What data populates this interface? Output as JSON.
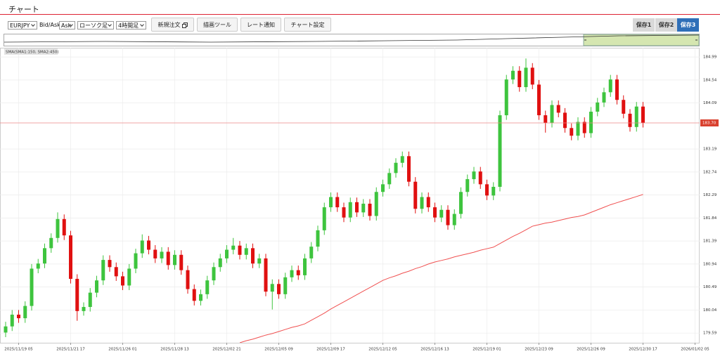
{
  "header": {
    "title": "チャート"
  },
  "toolbar": {
    "symbol": "EURJPY",
    "price_label": "Bid/Ask",
    "price_type": "Ask",
    "chart_type": "ローソク足",
    "timeframe": "4時間足",
    "buttons": [
      "新規注文",
      "描画ツール",
      "レート通知",
      "チャート設定"
    ],
    "saves": [
      "保存1",
      "保存2",
      "保存3"
    ]
  },
  "chart_data": {
    "type": "candlestick",
    "up_color": "#3ec43e",
    "down_color": "#e01010",
    "grid": true,
    "ylim": [
      179.4,
      185.17
    ],
    "yticks": [
      184.99,
      184.54,
      184.09,
      183.19,
      182.74,
      182.29,
      181.84,
      181.39,
      180.94,
      180.49,
      180.04,
      179.59
    ],
    "current_price": {
      "value": 183.7,
      "label": "183.70"
    },
    "categories": [
      null,
      null,
      "2025/11/19 05",
      null,
      null,
      null,
      null,
      null,
      null,
      null,
      "2025/11/21 17",
      null,
      null,
      null,
      null,
      null,
      null,
      null,
      "2025/11/26 01",
      null,
      null,
      null,
      null,
      null,
      null,
      null,
      "2025/11/28 13",
      null,
      null,
      null,
      null,
      null,
      null,
      null,
      "2025/12/02 21",
      null,
      null,
      null,
      null,
      null,
      null,
      null,
      "2025/12/05 09",
      null,
      null,
      null,
      null,
      null,
      null,
      null,
      "2025/12/09 17",
      null,
      null,
      null,
      null,
      null,
      null,
      null,
      "2025/12/12 05",
      null,
      null,
      null,
      null,
      null,
      null,
      null,
      "2025/12/16 13",
      null,
      null,
      null,
      null,
      null,
      null,
      null,
      "2025/12/19 01",
      null,
      null,
      null,
      null,
      null,
      null,
      null,
      "2025/12/23 09",
      null,
      null,
      null,
      null,
      null,
      null,
      null,
      "2025/12/26 09",
      null,
      null,
      null,
      null,
      null,
      null,
      null,
      "2025/12/30 17",
      null,
      null,
      null,
      null,
      null,
      null,
      null,
      "2026/01/02 05"
    ],
    "open": [
      179.6,
      179.72,
      179.95,
      179.88,
      180.12,
      180.85,
      180.95,
      181.25,
      181.45,
      181.82,
      181.5,
      180.65,
      180.02,
      180.1,
      180.38,
      180.62,
      181.02,
      180.88,
      180.7,
      180.52,
      180.85,
      181.15,
      181.4,
      181.22,
      181.05,
      181.18,
      180.92,
      181.12,
      180.82,
      180.45,
      180.22,
      180.35,
      180.62,
      180.88,
      181.05,
      181.22,
      181.3,
      181.12,
      181.25,
      180.95,
      181.05,
      180.4,
      180.55,
      180.35,
      180.68,
      180.82,
      180.72,
      181.05,
      181.28,
      181.6,
      182.05,
      182.25,
      182.05,
      181.85,
      182.15,
      181.95,
      182.12,
      181.88,
      182.35,
      182.5,
      182.72,
      182.92,
      183.05,
      182.55,
      182.02,
      182.25,
      182.05,
      181.85,
      182.0,
      181.7,
      181.92,
      182.35,
      182.6,
      182.75,
      182.5,
      182.28,
      182.45,
      183.85,
      184.55,
      184.72,
      184.4,
      184.78,
      184.45,
      183.85,
      183.7,
      184.05,
      183.9,
      183.6,
      183.45,
      183.72,
      183.5,
      183.92,
      184.1,
      184.3,
      184.55,
      184.15,
      183.88,
      183.62,
      184.02,
      null,
      null,
      null,
      null,
      null,
      null,
      null,
      null
    ],
    "high": [
      179.81,
      180.04,
      180.04,
      180.21,
      180.94,
      181.04,
      181.34,
      181.54,
      181.95,
      181.91,
      181.59,
      180.74,
      180.19,
      180.47,
      180.71,
      181.11,
      181.11,
      180.97,
      180.79,
      180.94,
      181.24,
      181.52,
      181.49,
      181.31,
      181.27,
      181.27,
      181.21,
      181.21,
      180.91,
      180.54,
      180.44,
      180.71,
      180.97,
      181.14,
      181.31,
      181.45,
      181.39,
      181.34,
      181.34,
      181.14,
      181.14,
      180.64,
      180.64,
      180.77,
      180.91,
      180.91,
      181.14,
      181.37,
      181.69,
      182.14,
      182.34,
      182.34,
      182.14,
      182.24,
      182.24,
      182.21,
      182.21,
      182.44,
      182.59,
      182.81,
      183.01,
      183.14,
      183.14,
      182.64,
      182.34,
      182.34,
      182.14,
      182.09,
      182.09,
      182.01,
      182.44,
      182.69,
      182.84,
      182.84,
      182.59,
      182.54,
      183.94,
      184.64,
      184.81,
      184.81,
      184.96,
      184.87,
      184.54,
      183.94,
      184.14,
      184.14,
      183.99,
      183.69,
      183.81,
      183.81,
      184.01,
      184.19,
      184.39,
      184.64,
      184.64,
      184.24,
      183.97,
      184.11,
      184.11,
      null,
      null,
      null,
      null,
      null,
      null,
      null,
      null
    ],
    "low": [
      179.51,
      179.63,
      179.79,
      179.79,
      180.03,
      180.76,
      180.86,
      181.16,
      181.36,
      181.41,
      180.56,
      179.83,
      179.93,
      180.01,
      180.29,
      180.53,
      180.79,
      180.61,
      180.43,
      180.43,
      180.76,
      181.06,
      181.13,
      180.96,
      180.96,
      180.83,
      180.83,
      180.73,
      180.36,
      180.13,
      180.13,
      180.26,
      180.53,
      180.79,
      180.96,
      181.13,
      181.03,
      181.03,
      180.86,
      180.86,
      180.31,
      180.05,
      180.26,
      180.26,
      180.59,
      180.63,
      180.63,
      180.96,
      181.19,
      181.51,
      181.96,
      181.96,
      181.76,
      181.76,
      181.86,
      181.86,
      181.79,
      181.79,
      182.26,
      182.41,
      182.63,
      182.83,
      182.46,
      181.93,
      181.93,
      181.96,
      181.76,
      181.76,
      181.61,
      181.61,
      181.83,
      182.26,
      182.51,
      182.41,
      182.19,
      182.19,
      182.36,
      183.76,
      184.46,
      184.31,
      184.31,
      184.36,
      183.76,
      183.51,
      183.61,
      183.81,
      183.51,
      183.36,
      183.36,
      183.41,
      183.41,
      183.83,
      184.01,
      184.21,
      184.06,
      183.79,
      183.53,
      183.53,
      183.61,
      null,
      null,
      null,
      null,
      null,
      null,
      null,
      null
    ],
    "close": [
      179.72,
      179.95,
      179.88,
      180.12,
      180.85,
      180.95,
      181.25,
      181.45,
      181.82,
      181.5,
      180.65,
      180.02,
      180.1,
      180.38,
      180.62,
      181.02,
      180.88,
      180.7,
      180.52,
      180.85,
      181.15,
      181.4,
      181.22,
      181.05,
      181.18,
      180.92,
      181.12,
      180.82,
      180.45,
      180.22,
      180.35,
      180.62,
      180.88,
      181.05,
      181.22,
      181.3,
      181.12,
      181.25,
      180.95,
      181.05,
      180.4,
      180.55,
      180.35,
      180.68,
      180.82,
      180.72,
      181.05,
      181.28,
      181.6,
      182.05,
      182.25,
      182.05,
      181.85,
      182.15,
      181.95,
      182.12,
      181.88,
      182.35,
      182.5,
      182.72,
      182.92,
      183.05,
      182.55,
      182.02,
      182.25,
      182.05,
      181.85,
      182.0,
      181.7,
      181.92,
      182.35,
      182.6,
      182.75,
      182.5,
      182.28,
      182.45,
      183.85,
      184.55,
      184.72,
      184.4,
      184.78,
      184.45,
      183.85,
      183.7,
      184.05,
      183.9,
      183.6,
      183.45,
      183.72,
      183.5,
      183.92,
      184.1,
      184.3,
      184.55,
      184.15,
      183.88,
      183.62,
      184.02,
      183.7,
      null,
      null,
      null,
      null,
      null,
      null,
      null,
      null
    ],
    "sma": {
      "label": "SMA(SMA1:150, SMA2:450)",
      "color": "#f05050",
      "values": [
        null,
        null,
        null,
        null,
        null,
        null,
        null,
        null,
        null,
        null,
        null,
        null,
        null,
        null,
        null,
        null,
        null,
        null,
        null,
        null,
        null,
        null,
        null,
        null,
        null,
        null,
        null,
        null,
        null,
        null,
        null,
        null,
        null,
        null,
        null,
        null,
        179.4,
        179.44,
        179.47,
        179.51,
        179.55,
        179.58,
        179.62,
        179.66,
        179.7,
        179.73,
        179.77,
        179.84,
        179.91,
        179.98,
        180.06,
        180.13,
        180.2,
        180.27,
        180.34,
        180.41,
        180.48,
        180.55,
        180.62,
        180.67,
        180.71,
        180.76,
        180.8,
        180.85,
        180.89,
        180.94,
        180.98,
        181.01,
        181.04,
        181.08,
        181.11,
        181.14,
        181.17,
        181.21,
        181.24,
        181.27,
        181.34,
        181.41,
        181.48,
        181.54,
        181.61,
        181.68,
        181.71,
        181.74,
        181.76,
        181.79,
        181.82,
        181.85,
        181.87,
        181.9,
        181.95,
        182.0,
        182.05,
        182.1,
        182.14,
        182.18,
        182.22,
        182.26,
        182.3,
        null,
        null,
        null,
        null,
        null,
        null,
        null,
        null
      ]
    }
  }
}
